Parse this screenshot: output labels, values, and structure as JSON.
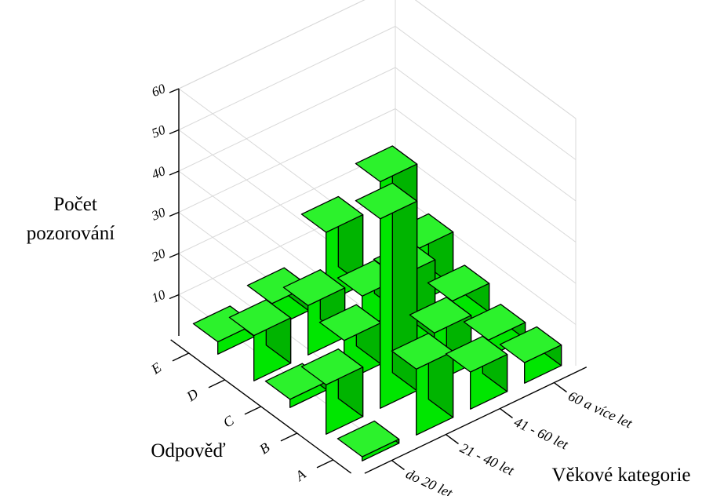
{
  "chart_data": {
    "type": "bar3d",
    "ylabel_lines": [
      "Počet",
      "pozorování"
    ],
    "x_axis_label": "Věkové kategorie",
    "z_axis_label": "Odpověď",
    "age_categories": [
      "do 20 let",
      "21 - 40 let",
      "41 - 60 let",
      "60 a více let"
    ],
    "answers": [
      "A",
      "B",
      "C",
      "D",
      "E"
    ],
    "yticks": [
      10,
      20,
      30,
      40,
      50,
      60
    ],
    "ylim": [
      0,
      60
    ],
    "grid": true,
    "bar_color": "#00e600",
    "series": [
      {
        "name": "A",
        "values": [
          1,
          16,
          9,
          5
        ]
      },
      {
        "name": "B",
        "values": [
          12,
          46,
          12,
          4
        ]
      },
      {
        "name": "C",
        "values": [
          2,
          10,
          19,
          7
        ]
      },
      {
        "name": "D",
        "values": [
          11,
          12,
          8,
          13
        ]
      },
      {
        "name": "E",
        "values": [
          3,
          6,
          17,
          23
        ]
      }
    ]
  }
}
